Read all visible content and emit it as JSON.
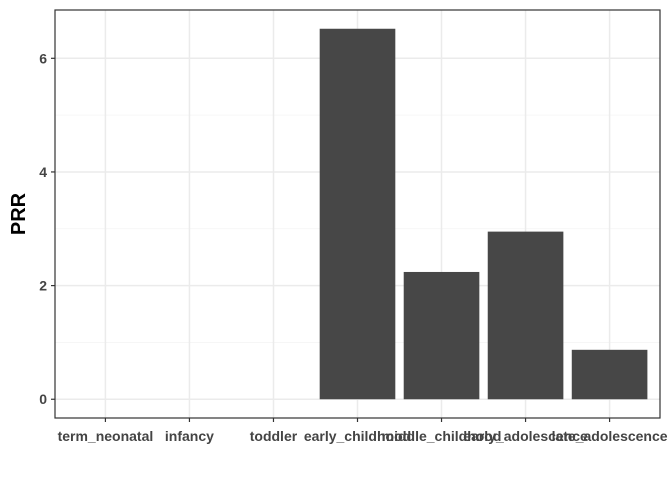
{
  "chart_data": {
    "type": "bar",
    "title": "",
    "xlabel": "",
    "ylabel": "PRR",
    "categories": [
      "term_neonatal",
      "infancy",
      "toddler",
      "early_childhood",
      "middle_childhood",
      "early_adolescence",
      "late_adolescence"
    ],
    "values": [
      0,
      0,
      0,
      6.52,
      2.24,
      2.95,
      0.87
    ],
    "ylim": [
      -0.33,
      6.85
    ],
    "yticks": [
      0,
      2,
      4,
      6
    ],
    "grid": true,
    "legend": "none",
    "colors": {
      "bar": "#474747",
      "grid_major": "#ebebeb",
      "grid_minor": "#f4f4f4",
      "panel_border": "#333333",
      "tick_text": "#444444"
    }
  }
}
